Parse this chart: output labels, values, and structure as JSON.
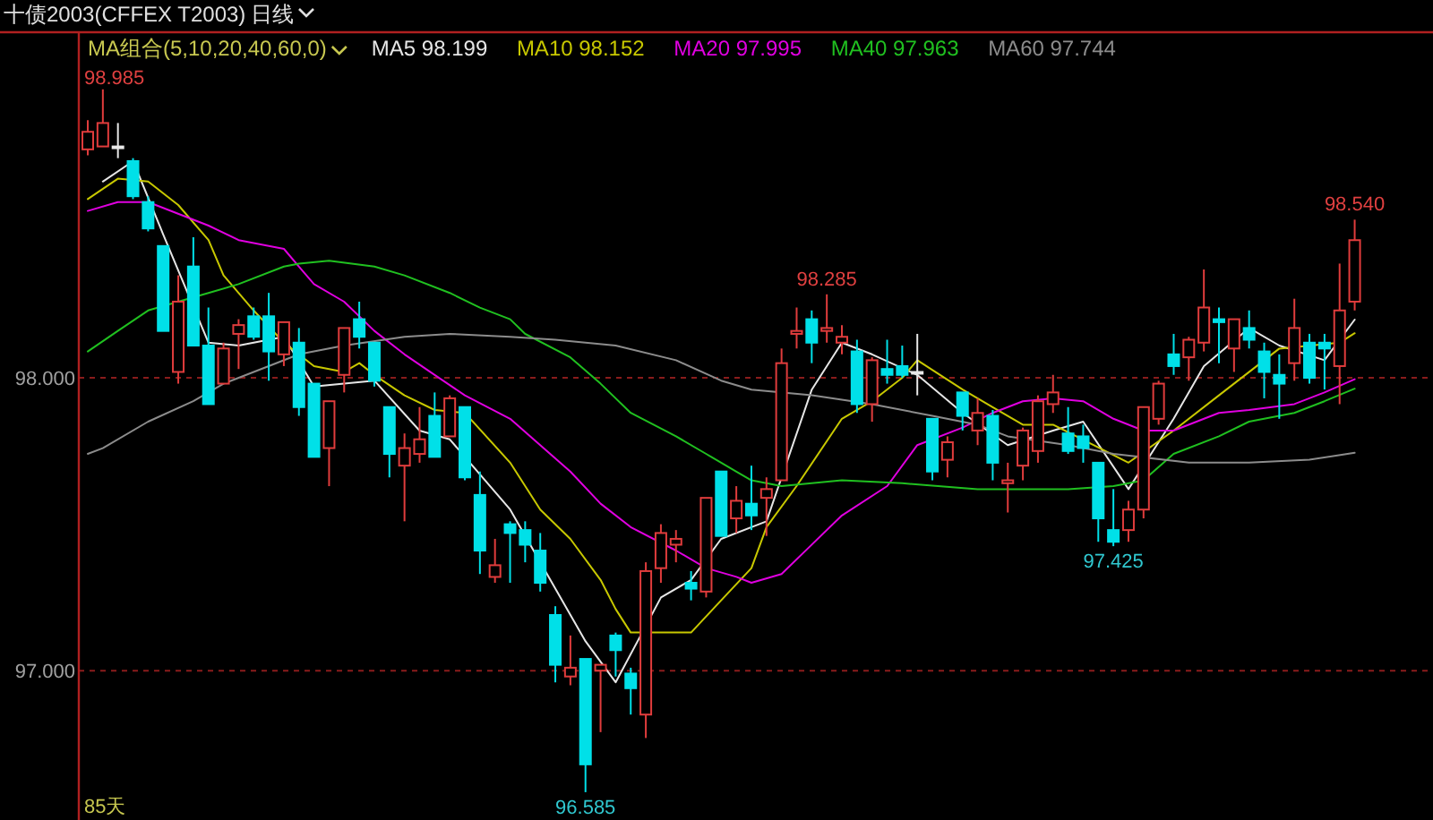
{
  "chart_data": {
    "type": "candlestick",
    "title": "十债2003(CFFEX T2003)",
    "subtitle": "日线",
    "legend_title": "MA组合(5,10,20,40,60,0)",
    "legend": "top left",
    "grid": "y",
    "ylim": [
      96.49,
      99.18
    ],
    "yticks": [
      {
        "value": 98,
        "label": "98.000"
      },
      {
        "value": 97,
        "label": "97.000"
      }
    ],
    "categories": [
      null,
      null,
      null,
      null,
      null,
      null,
      null,
      null,
      null,
      null,
      null,
      null,
      null,
      null,
      null,
      null,
      null,
      null,
      null,
      null,
      null,
      null,
      null,
      null,
      null,
      null,
      null,
      null,
      null,
      null,
      null,
      null,
      null,
      null,
      null,
      null,
      null,
      null,
      null,
      null,
      null,
      null,
      null,
      null,
      null,
      null,
      null,
      null,
      null,
      null,
      null,
      null,
      null,
      null,
      null,
      null,
      null,
      null,
      null,
      null,
      null,
      null,
      null,
      null,
      null,
      null,
      null,
      null,
      null,
      null,
      null,
      null,
      null,
      null,
      null,
      null,
      null,
      null,
      null,
      null,
      null,
      null,
      null,
      null,
      null
    ],
    "ohlc": [
      [
        98.78,
        98.88,
        98.76,
        98.84
      ],
      [
        98.79,
        98.985,
        98.79,
        98.87
      ],
      [
        98.79,
        98.87,
        98.75,
        98.79
      ],
      [
        98.74,
        98.75,
        98.61,
        98.62
      ],
      [
        98.6,
        98.62,
        98.5,
        98.51
      ],
      [
        98.45,
        98.45,
        98.16,
        98.16
      ],
      [
        98.02,
        98.35,
        97.98,
        98.26
      ],
      [
        98.38,
        98.48,
        98.11,
        98.11
      ],
      [
        98.11,
        98.24,
        97.91,
        97.91
      ],
      [
        97.98,
        98.12,
        97.98,
        98.1
      ],
      [
        98.15,
        98.2,
        98.03,
        98.18
      ],
      [
        98.21,
        98.24,
        98.13,
        98.14
      ],
      [
        98.21,
        98.29,
        97.99,
        98.09
      ],
      [
        98.08,
        98.19,
        98.04,
        98.19
      ],
      [
        98.12,
        98.17,
        97.87,
        97.9
      ],
      [
        97.98,
        97.98,
        97.73,
        97.73
      ],
      [
        97.76,
        97.92,
        97.63,
        97.92
      ],
      [
        98.01,
        98.17,
        97.95,
        98.17
      ],
      [
        98.2,
        98.26,
        98.1,
        98.14
      ],
      [
        98.12,
        98.12,
        97.97,
        97.99
      ],
      [
        97.9,
        97.9,
        97.66,
        97.74
      ],
      [
        97.7,
        97.81,
        97.51,
        97.76
      ],
      [
        97.74,
        97.9,
        97.71,
        97.79
      ],
      [
        97.87,
        97.95,
        97.73,
        97.73
      ],
      [
        97.8,
        97.94,
        97.8,
        97.93
      ],
      [
        97.9,
        97.9,
        97.65,
        97.66
      ],
      [
        97.6,
        97.68,
        97.33,
        97.41
      ],
      [
        97.32,
        97.45,
        97.3,
        97.36
      ],
      [
        97.5,
        97.51,
        97.3,
        97.47
      ],
      [
        97.48,
        97.51,
        97.37,
        97.43
      ],
      [
        97.41,
        97.47,
        97.27,
        97.3
      ],
      [
        97.19,
        97.22,
        96.96,
        97.02
      ],
      [
        96.98,
        97.12,
        96.95,
        97.01
      ],
      [
        97.04,
        97.04,
        96.585,
        96.68
      ],
      [
        97.0,
        97.02,
        96.79,
        97.02
      ],
      [
        97.12,
        97.13,
        96.98,
        97.07
      ],
      [
        96.99,
        97.01,
        96.85,
        96.94
      ],
      [
        96.85,
        97.37,
        96.77,
        97.34
      ],
      [
        97.35,
        97.5,
        97.3,
        97.47
      ],
      [
        97.43,
        97.48,
        97.37,
        97.45
      ],
      [
        97.3,
        97.34,
        97.24,
        97.28
      ],
      [
        97.27,
        97.59,
        97.25,
        97.59
      ],
      [
        97.68,
        97.68,
        97.46,
        97.46
      ],
      [
        97.52,
        97.63,
        97.47,
        97.58
      ],
      [
        97.57,
        97.7,
        97.48,
        97.53
      ],
      [
        97.59,
        97.66,
        97.46,
        97.62
      ],
      [
        97.65,
        98.1,
        97.65,
        98.05
      ],
      [
        98.15,
        98.24,
        98.1,
        98.16
      ],
      [
        98.2,
        98.23,
        98.05,
        98.12
      ],
      [
        98.16,
        98.285,
        98.12,
        98.17
      ],
      [
        98.12,
        98.18,
        98.08,
        98.14
      ],
      [
        98.09,
        98.13,
        97.88,
        97.91
      ],
      [
        97.91,
        98.07,
        97.85,
        98.06
      ],
      [
        98.03,
        98.13,
        97.98,
        98.01
      ],
      [
        98.04,
        98.11,
        98.0,
        98.01
      ],
      [
        98.02,
        98.15,
        97.94,
        98.02
      ],
      [
        97.86,
        97.86,
        97.65,
        97.68
      ],
      [
        97.72,
        97.8,
        97.66,
        97.78
      ],
      [
        97.95,
        97.95,
        97.82,
        97.87
      ],
      [
        97.82,
        97.93,
        97.77,
        97.88
      ],
      [
        97.87,
        97.89,
        97.65,
        97.71
      ],
      [
        97.64,
        97.71,
        97.54,
        97.65
      ],
      [
        97.7,
        97.83,
        97.65,
        97.82
      ],
      [
        97.75,
        97.94,
        97.71,
        97.92
      ],
      [
        97.91,
        98.01,
        97.88,
        97.95
      ],
      [
        97.81,
        97.9,
        97.74,
        97.75
      ],
      [
        97.8,
        97.84,
        97.71,
        97.76
      ],
      [
        97.71,
        97.71,
        97.44,
        97.52
      ],
      [
        97.48,
        97.62,
        97.425,
        97.44
      ],
      [
        97.48,
        97.58,
        97.44,
        97.55
      ],
      [
        97.55,
        97.9,
        97.52,
        97.9
      ],
      [
        97.86,
        97.99,
        97.84,
        97.98
      ],
      [
        98.08,
        98.15,
        98.01,
        98.04
      ],
      [
        98.07,
        98.14,
        97.99,
        98.13
      ],
      [
        98.12,
        98.37,
        98.09,
        98.24
      ],
      [
        98.2,
        98.24,
        98.05,
        98.19
      ],
      [
        98.1,
        98.2,
        98.02,
        98.2
      ],
      [
        98.17,
        98.23,
        98.1,
        98.13
      ],
      [
        98.09,
        98.12,
        97.93,
        98.02
      ],
      [
        98.01,
        98.08,
        97.86,
        97.98
      ],
      [
        98.05,
        98.27,
        97.99,
        98.17
      ],
      [
        98.12,
        98.15,
        97.98,
        98.0
      ],
      [
        98.12,
        98.15,
        97.96,
        98.1
      ],
      [
        98.04,
        98.39,
        97.91,
        98.23
      ],
      [
        98.26,
        98.54,
        98.23,
        98.47
      ]
    ],
    "colors": [
      "#e03c3c",
      "#e03c3c",
      "#e8e8e8",
      "#00e0e8",
      "#00e0e8",
      "#00e0e8",
      "#e03c3c",
      "#00e0e8",
      "#00e0e8",
      "#e03c3c",
      "#e03c3c",
      "#00e0e8",
      "#00e0e8",
      "#e03c3c",
      "#00e0e8",
      "#00e0e8",
      "#e03c3c",
      "#e03c3c",
      "#00e0e8",
      "#00e0e8",
      "#00e0e8",
      "#e03c3c",
      "#e03c3c",
      "#00e0e8",
      "#e03c3c",
      "#00e0e8",
      "#00e0e8",
      "#e03c3c",
      "#00e0e8",
      "#00e0e8",
      "#00e0e8",
      "#00e0e8",
      "#e03c3c",
      "#00e0e8",
      "#e03c3c",
      "#00e0e8",
      "#00e0e8",
      "#e03c3c",
      "#e03c3c",
      "#e03c3c",
      "#00e0e8",
      "#e03c3c",
      "#00e0e8",
      "#e03c3c",
      "#00e0e8",
      "#e03c3c",
      "#e03c3c",
      "#e03c3c",
      "#00e0e8",
      "#e03c3c",
      "#e03c3c",
      "#00e0e8",
      "#e03c3c",
      "#00e0e8",
      "#00e0e8",
      "#e8e8e8",
      "#00e0e8",
      "#e03c3c",
      "#00e0e8",
      "#e03c3c",
      "#00e0e8",
      "#e03c3c",
      "#e03c3c",
      "#e03c3c",
      "#e03c3c",
      "#00e0e8",
      "#00e0e8",
      "#00e0e8",
      "#00e0e8",
      "#e03c3c",
      "#e03c3c",
      "#e03c3c",
      "#00e0e8",
      "#e03c3c",
      "#e03c3c",
      "#00e0e8",
      "#e03c3c",
      "#00e0e8",
      "#00e0e8",
      "#00e0e8",
      "#e03c3c",
      "#00e0e8",
      "#00e0e8",
      "#e03c3c",
      "#e03c3c"
    ],
    "series": [
      {
        "type": "line",
        "name": "MA5 98.199",
        "color": "#e6e6e6",
        "values": [
          null,
          98.67,
          null,
          98.74,
          null,
          98.49,
          null,
          null,
          98.12,
          null,
          98.11,
          null,
          null,
          98.14,
          null,
          97.97,
          null,
          97.98,
          null,
          97.99,
          null,
          null,
          97.82,
          null,
          97.79,
          null,
          null,
          null,
          97.55,
          null,
          null,
          null,
          null,
          97.1,
          null,
          96.96,
          null,
          null,
          97.25,
          null,
          97.31,
          null,
          97.45,
          null,
          null,
          97.51,
          null,
          null,
          97.96,
          null,
          98.12,
          null,
          98.08,
          null,
          null,
          98.01,
          null,
          null,
          97.88,
          null,
          null,
          97.77,
          null,
          null,
          97.82,
          null,
          97.85,
          null,
          null,
          97.62,
          null,
          null,
          97.86,
          null,
          98.04,
          null,
          null,
          98.17,
          null,
          98.11,
          null,
          null,
          98.06,
          null,
          98.199
        ]
      },
      {
        "type": "line",
        "name": "MA10 98.152",
        "color": "#c8c800",
        "values": [
          98.61,
          null,
          98.68,
          null,
          98.67,
          null,
          98.59,
          null,
          98.47,
          98.35,
          null,
          98.23,
          null,
          98.12,
          null,
          98.04,
          null,
          98.02,
          98.05,
          98.01,
          null,
          97.94,
          null,
          97.89,
          null,
          97.88,
          null,
          null,
          97.71,
          null,
          97.55,
          null,
          97.45,
          null,
          97.31,
          97.21,
          97.13,
          null,
          null,
          null,
          97.13,
          null,
          97.24,
          null,
          97.35,
          97.49,
          null,
          97.63,
          null,
          null,
          97.86,
          null,
          97.92,
          null,
          98.0,
          98.06,
          null,
          null,
          97.96,
          null,
          97.9,
          null,
          97.84,
          null,
          97.84,
          null,
          null,
          null,
          null,
          97.71,
          null,
          null,
          97.82,
          null,
          null,
          97.94,
          null,
          null,
          null,
          98.1,
          null,
          null,
          null,
          98.12,
          98.152
        ]
      },
      {
        "type": "line",
        "name": "MA20 97.995",
        "color": "#e000e0",
        "values": [
          98.57,
          null,
          98.6,
          null,
          98.6,
          98.58,
          null,
          null,
          98.52,
          null,
          98.47,
          null,
          null,
          98.44,
          98.38,
          98.32,
          null,
          98.26,
          null,
          98.16,
          null,
          98.08,
          null,
          98.01,
          null,
          97.94,
          null,
          null,
          97.86,
          null,
          null,
          null,
          97.68,
          null,
          97.57,
          null,
          97.49,
          null,
          null,
          97.41,
          null,
          97.35,
          null,
          97.32,
          97.3,
          null,
          97.33,
          null,
          97.43,
          null,
          97.53,
          null,
          null,
          97.63,
          null,
          97.77,
          null,
          null,
          97.83,
          null,
          97.88,
          null,
          97.92,
          null,
          97.93,
          null,
          97.92,
          null,
          97.86,
          null,
          97.82,
          null,
          97.82,
          null,
          null,
          97.88,
          null,
          97.89,
          null,
          null,
          97.91,
          null,
          97.95,
          null,
          97.995
        ]
      },
      {
        "type": "line",
        "name": "MA40 97.963",
        "color": "#20c020",
        "values": [
          98.09,
          null,
          98.16,
          null,
          98.23,
          null,
          98.26,
          null,
          98.29,
          null,
          98.32,
          null,
          null,
          98.38,
          98.39,
          null,
          98.4,
          null,
          null,
          98.38,
          null,
          98.35,
          null,
          null,
          98.29,
          null,
          98.24,
          null,
          98.2,
          98.15,
          null,
          null,
          98.07,
          null,
          97.98,
          null,
          97.88,
          null,
          null,
          97.8,
          null,
          97.74,
          null,
          97.68,
          97.65,
          null,
          97.63,
          null,
          null,
          null,
          97.65,
          null,
          null,
          null,
          97.64,
          null,
          null,
          null,
          null,
          97.62,
          null,
          null,
          97.62,
          null,
          null,
          97.62,
          null,
          null,
          97.63,
          null,
          97.65,
          null,
          97.74,
          null,
          null,
          97.8,
          null,
          97.85,
          null,
          null,
          97.88,
          null,
          97.92,
          null,
          97.963
        ]
      },
      {
        "type": "line",
        "name": "MA60 97.744",
        "color": "#8c8c8c",
        "values": [
          97.74,
          97.76,
          null,
          null,
          97.85,
          null,
          null,
          97.92,
          null,
          97.98,
          null,
          null,
          98.04,
          null,
          98.08,
          null,
          null,
          98.11,
          null,
          null,
          null,
          98.14,
          null,
          null,
          98.15,
          null,
          null,
          null,
          98.14,
          null,
          null,
          98.13,
          null,
          null,
          null,
          98.11,
          null,
          null,
          null,
          98.06,
          null,
          null,
          97.99,
          null,
          97.96,
          null,
          null,
          null,
          97.94,
          null,
          null,
          null,
          97.91,
          null,
          null,
          null,
          97.87,
          null,
          null,
          97.84,
          null,
          97.8,
          null,
          null,
          null,
          97.77,
          null,
          null,
          97.74,
          null,
          null,
          null,
          null,
          97.71,
          null,
          null,
          null,
          97.71,
          null,
          null,
          null,
          97.72,
          null,
          null,
          97.744
        ]
      }
    ],
    "annotations": [
      "98.985",
      {
        "text": "98.285",
        "y": 98.285
      },
      {
        "text": "98.540",
        "y": 98.54
      },
      {
        "text": "96.585",
        "y": 96.585
      },
      {
        "text": "97.425",
        "y": 97.425
      },
      "85天"
    ]
  }
}
